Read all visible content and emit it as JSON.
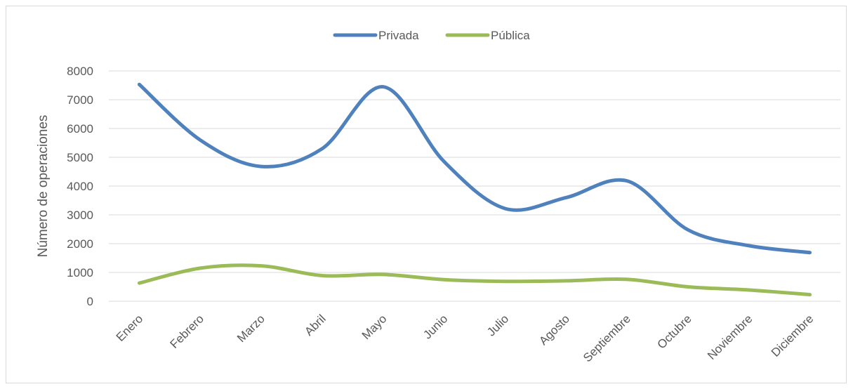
{
  "chart_data": {
    "type": "line",
    "title": "",
    "xlabel": "",
    "ylabel": "Número de operaciones",
    "ylim": [
      0,
      8000
    ],
    "yticks": [
      0,
      1000,
      2000,
      3000,
      4000,
      5000,
      6000,
      7000,
      8000
    ],
    "grid": true,
    "legend_position": "top",
    "smooth": true,
    "categories": [
      "Enero",
      "Febrero",
      "Marzo",
      "Abril",
      "Mayo",
      "Junio",
      "Julio",
      "Agosto",
      "Septiembre",
      "Octubre",
      "Noviembre",
      "Diciembre"
    ],
    "series": [
      {
        "name": "Privada",
        "color": "#4f81bd",
        "values": [
          7530,
          5600,
          4680,
          5300,
          7450,
          4850,
          3220,
          3600,
          4180,
          2480,
          1930,
          1690
        ]
      },
      {
        "name": "Pública",
        "color": "#9bbb59",
        "values": [
          630,
          1150,
          1230,
          890,
          930,
          750,
          690,
          710,
          760,
          500,
          390,
          230
        ]
      }
    ]
  }
}
